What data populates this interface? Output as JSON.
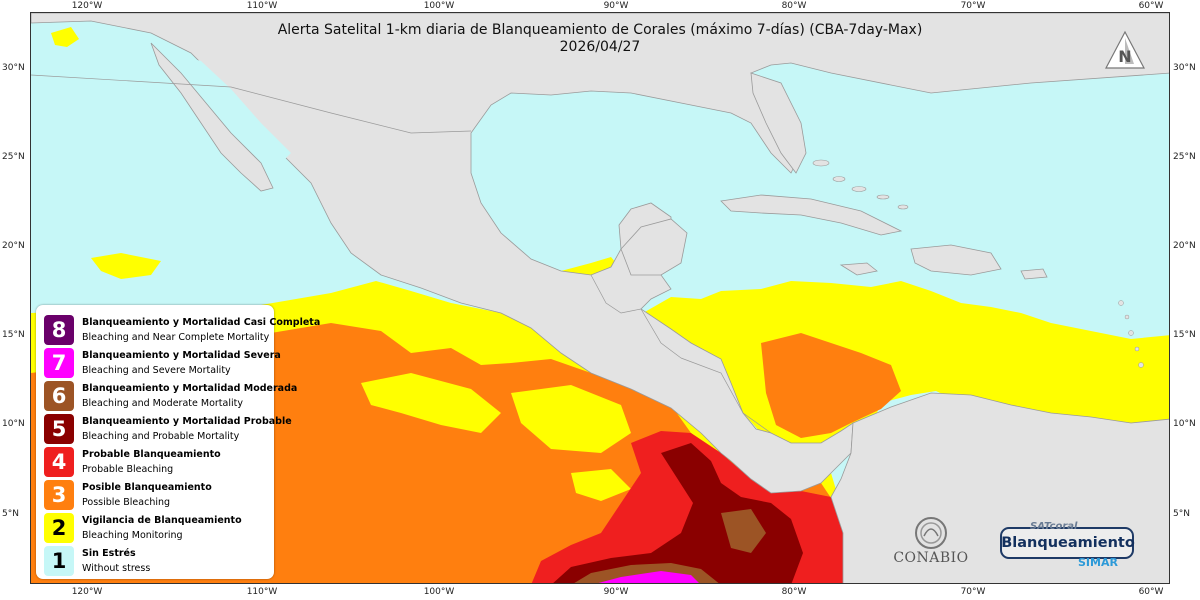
{
  "title": {
    "line1": "Alerta Satelital 1-km diaria de Blanqueamiento de Corales (máximo 7-días) (CBA-7day-Max)",
    "line2": "2026/04/27"
  },
  "axes": {
    "lon_labels": [
      "120°W",
      "110°W",
      "100°W",
      "90°W",
      "80°W",
      "70°W",
      "60°W"
    ],
    "lat_labels": [
      "30°N",
      "25°N",
      "20°N",
      "15°N",
      "10°N",
      "5°N"
    ]
  },
  "legend": {
    "items": [
      {
        "level": "8",
        "es": "Blanqueamiento y Mortalidad Casi Completa",
        "en": "Bleaching and Near Complete Mortality",
        "color": "#6a006a",
        "text_color": "#ffffff"
      },
      {
        "level": "7",
        "es": "Blanqueamiento y Mortalidad Severa",
        "en": "Bleaching and Severe Mortality",
        "color": "#ff00ff",
        "text_color": "#ffffff"
      },
      {
        "level": "6",
        "es": "Blanqueamiento y Mortalidad Moderada",
        "en": "Bleaching and Moderate Mortality",
        "color": "#9c5425",
        "text_color": "#ffffff"
      },
      {
        "level": "5",
        "es": "Blanqueamiento y Mortalidad Probable",
        "en": "Bleaching and Probable Mortality",
        "color": "#8a0000",
        "text_color": "#ffffff"
      },
      {
        "level": "4",
        "es": "Probable Blanqueamiento",
        "en": "Probable Bleaching",
        "color": "#ef1f1f",
        "text_color": "#ffffff"
      },
      {
        "level": "3",
        "es": "Posible Blanqueamiento",
        "en": "Possible Bleaching",
        "color": "#ff7f0f",
        "text_color": "#ffffff"
      },
      {
        "level": "2",
        "es": "Vigilancia de Blanqueamiento",
        "en": "Bleaching Monitoring",
        "color": "#ffff00",
        "text_color": "#000000"
      },
      {
        "level": "1",
        "es": "Sin Estrés",
        "en": "Without stress",
        "color": "#c6f7f7",
        "text_color": "#000000"
      }
    ]
  },
  "logos": {
    "conabio": "CONABIO",
    "satcoral": "SATcoral",
    "blanqueamiento": "Blanqueamiento",
    "simar": "SIMAR",
    "north_arrow": "N"
  },
  "colors": {
    "ocean_no_stress": "#c6f7f7",
    "land": "#e3e3e3",
    "border": "#9a9a9a"
  },
  "icons": [
    "north-arrow-icon",
    "conabio-logo-icon"
  ]
}
